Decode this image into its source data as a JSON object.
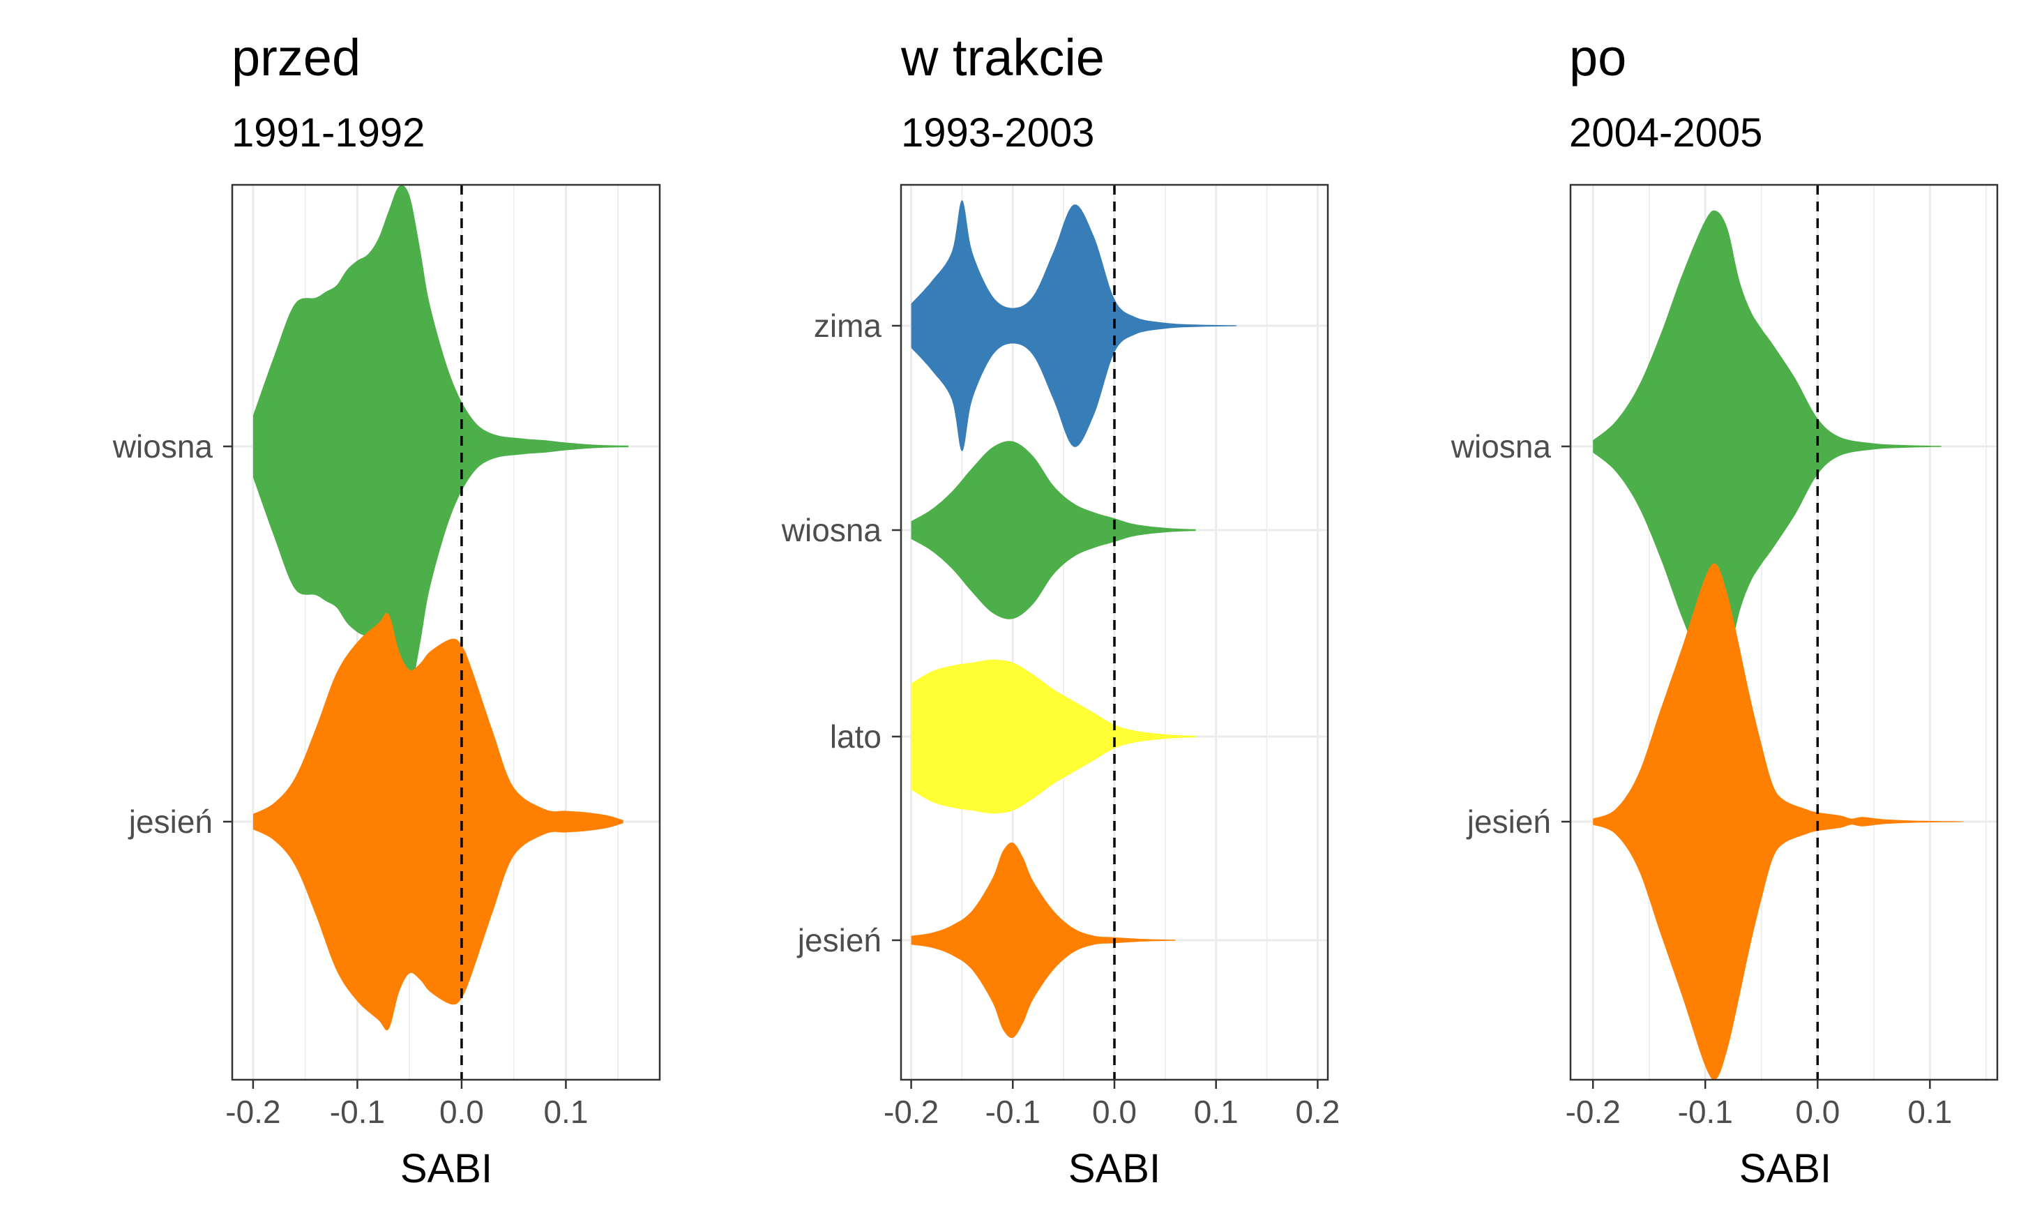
{
  "chart_data": [
    {
      "type": "violin",
      "title": "przed",
      "subtitle": "1991-1992",
      "xlabel": "SABI",
      "ylabel": "",
      "xlim": [
        -0.22,
        0.19
      ],
      "x_ticks": [
        "-0.2",
        "-0.1",
        "0.0",
        "0.1"
      ],
      "x_tick_values": [
        -0.2,
        -0.1,
        0.0,
        0.1
      ],
      "reference_line_x": 0.0,
      "categories": [
        "wiosna",
        "jesień"
      ],
      "series": [
        {
          "name": "wiosna",
          "color": "#4DAF4A",
          "profile": [
            [
              -0.2,
              0.2
            ],
            [
              -0.18,
              0.58
            ],
            [
              -0.16,
              0.92
            ],
            [
              -0.14,
              0.96
            ],
            [
              -0.13,
              1.0
            ],
            [
              -0.12,
              1.04
            ],
            [
              -0.11,
              1.14
            ],
            [
              -0.1,
              1.2
            ],
            [
              -0.09,
              1.24
            ],
            [
              -0.08,
              1.34
            ],
            [
              -0.07,
              1.52
            ],
            [
              -0.06,
              1.68
            ],
            [
              -0.05,
              1.62
            ],
            [
              -0.04,
              1.28
            ],
            [
              -0.03,
              0.9
            ],
            [
              -0.01,
              0.44
            ],
            [
              0.01,
              0.18
            ],
            [
              0.03,
              0.08
            ],
            [
              0.06,
              0.05
            ],
            [
              0.08,
              0.04
            ],
            [
              0.1,
              0.025
            ],
            [
              0.13,
              0.01
            ],
            [
              0.16,
              0.005
            ]
          ]
        },
        {
          "name": "jesień",
          "color": "#FF7F00",
          "profile": [
            [
              -0.2,
              0.05
            ],
            [
              -0.18,
              0.12
            ],
            [
              -0.16,
              0.28
            ],
            [
              -0.14,
              0.6
            ],
            [
              -0.12,
              0.96
            ],
            [
              -0.1,
              1.16
            ],
            [
              -0.08,
              1.28
            ],
            [
              -0.07,
              1.34
            ],
            [
              -0.06,
              1.1
            ],
            [
              -0.05,
              0.98
            ],
            [
              -0.04,
              1.02
            ],
            [
              -0.03,
              1.1
            ],
            [
              -0.01,
              1.18
            ],
            [
              0.0,
              1.14
            ],
            [
              0.01,
              0.98
            ],
            [
              0.03,
              0.58
            ],
            [
              0.05,
              0.22
            ],
            [
              0.08,
              0.08
            ],
            [
              0.1,
              0.07
            ],
            [
              0.12,
              0.06
            ],
            [
              0.14,
              0.04
            ],
            [
              0.155,
              0.01
            ]
          ]
        }
      ]
    },
    {
      "type": "violin",
      "title": "w trakcie",
      "subtitle": "1993-2003",
      "xlabel": "SABI",
      "ylabel": "",
      "xlim": [
        -0.21,
        0.21
      ],
      "x_ticks": [
        "-0.2",
        "-0.1",
        "0.0",
        "0.1",
        "0.2"
      ],
      "x_tick_values": [
        -0.2,
        -0.1,
        0.0,
        0.1,
        0.2
      ],
      "reference_line_x": 0.0,
      "categories": [
        "zima",
        "wiosna",
        "lato",
        "jesień"
      ],
      "series": [
        {
          "name": "zima",
          "color": "#377EB8",
          "profile": [
            [
              -0.2,
              0.15
            ],
            [
              -0.18,
              0.3
            ],
            [
              -0.16,
              0.5
            ],
            [
              -0.15,
              0.85
            ],
            [
              -0.14,
              0.5
            ],
            [
              -0.12,
              0.2
            ],
            [
              -0.1,
              0.12
            ],
            [
              -0.08,
              0.2
            ],
            [
              -0.06,
              0.5
            ],
            [
              -0.04,
              0.82
            ],
            [
              -0.02,
              0.6
            ],
            [
              0.0,
              0.18
            ],
            [
              0.02,
              0.06
            ],
            [
              0.05,
              0.02
            ],
            [
              0.08,
              0.008
            ],
            [
              0.12,
              0.003
            ]
          ]
        },
        {
          "name": "wiosna",
          "color": "#4DAF4A",
          "profile": [
            [
              -0.2,
              0.06
            ],
            [
              -0.18,
              0.14
            ],
            [
              -0.16,
              0.26
            ],
            [
              -0.14,
              0.42
            ],
            [
              -0.12,
              0.56
            ],
            [
              -0.1,
              0.6
            ],
            [
              -0.08,
              0.5
            ],
            [
              -0.06,
              0.3
            ],
            [
              -0.04,
              0.18
            ],
            [
              -0.02,
              0.12
            ],
            [
              0.0,
              0.08
            ],
            [
              0.02,
              0.04
            ],
            [
              0.05,
              0.015
            ],
            [
              0.08,
              0.005
            ]
          ]
        },
        {
          "name": "lato",
          "color": "#FFFF33",
          "profile": [
            [
              -0.2,
              0.36
            ],
            [
              -0.18,
              0.44
            ],
            [
              -0.16,
              0.48
            ],
            [
              -0.14,
              0.5
            ],
            [
              -0.12,
              0.52
            ],
            [
              -0.1,
              0.5
            ],
            [
              -0.08,
              0.42
            ],
            [
              -0.06,
              0.32
            ],
            [
              -0.04,
              0.24
            ],
            [
              -0.02,
              0.16
            ],
            [
              0.0,
              0.08
            ],
            [
              0.02,
              0.04
            ],
            [
              0.05,
              0.015
            ],
            [
              0.08,
              0.005
            ]
          ]
        },
        {
          "name": "jesień",
          "color": "#FF7F00",
          "profile": [
            [
              -0.2,
              0.03
            ],
            [
              -0.18,
              0.05
            ],
            [
              -0.16,
              0.1
            ],
            [
              -0.14,
              0.2
            ],
            [
              -0.12,
              0.42
            ],
            [
              -0.11,
              0.6
            ],
            [
              -0.1,
              0.66
            ],
            [
              -0.09,
              0.56
            ],
            [
              -0.08,
              0.4
            ],
            [
              -0.06,
              0.2
            ],
            [
              -0.04,
              0.08
            ],
            [
              -0.02,
              0.03
            ],
            [
              0.0,
              0.02
            ],
            [
              0.03,
              0.008
            ],
            [
              0.06,
              0.003
            ]
          ]
        }
      ]
    },
    {
      "type": "violin",
      "title": "po",
      "subtitle": "2004-2005",
      "xlabel": "SABI",
      "ylabel": "",
      "xlim": [
        -0.22,
        0.16
      ],
      "x_ticks": [
        "-0.2",
        "-0.1",
        "0.0",
        "0.1"
      ],
      "x_tick_values": [
        -0.2,
        -0.1,
        0.0,
        0.1
      ],
      "reference_line_x": 0.0,
      "categories": [
        "wiosna",
        "jesień"
      ],
      "series": [
        {
          "name": "wiosna",
          "color": "#4DAF4A",
          "profile": [
            [
              -0.2,
              0.04
            ],
            [
              -0.18,
              0.16
            ],
            [
              -0.16,
              0.38
            ],
            [
              -0.14,
              0.72
            ],
            [
              -0.12,
              1.12
            ],
            [
              -0.1,
              1.46
            ],
            [
              -0.09,
              1.52
            ],
            [
              -0.08,
              1.4
            ],
            [
              -0.07,
              1.08
            ],
            [
              -0.06,
              0.88
            ],
            [
              -0.05,
              0.76
            ],
            [
              -0.04,
              0.66
            ],
            [
              -0.02,
              0.44
            ],
            [
              0.0,
              0.18
            ],
            [
              0.02,
              0.06
            ],
            [
              0.05,
              0.02
            ],
            [
              0.08,
              0.008
            ],
            [
              0.11,
              0.003
            ]
          ]
        },
        {
          "name": "jesień",
          "color": "#FF7F00",
          "profile": [
            [
              -0.2,
              0.02
            ],
            [
              -0.18,
              0.08
            ],
            [
              -0.16,
              0.3
            ],
            [
              -0.14,
              0.72
            ],
            [
              -0.12,
              1.14
            ],
            [
              -0.1,
              1.58
            ],
            [
              -0.09,
              1.66
            ],
            [
              -0.08,
              1.46
            ],
            [
              -0.07,
              1.14
            ],
            [
              -0.06,
              0.8
            ],
            [
              -0.05,
              0.5
            ],
            [
              -0.04,
              0.24
            ],
            [
              -0.03,
              0.14
            ],
            [
              -0.01,
              0.08
            ],
            [
              0.0,
              0.06
            ],
            [
              0.02,
              0.04
            ],
            [
              0.03,
              0.02
            ],
            [
              0.04,
              0.03
            ],
            [
              0.06,
              0.015
            ],
            [
              0.09,
              0.006
            ],
            [
              0.13,
              0.002
            ]
          ]
        }
      ]
    }
  ]
}
